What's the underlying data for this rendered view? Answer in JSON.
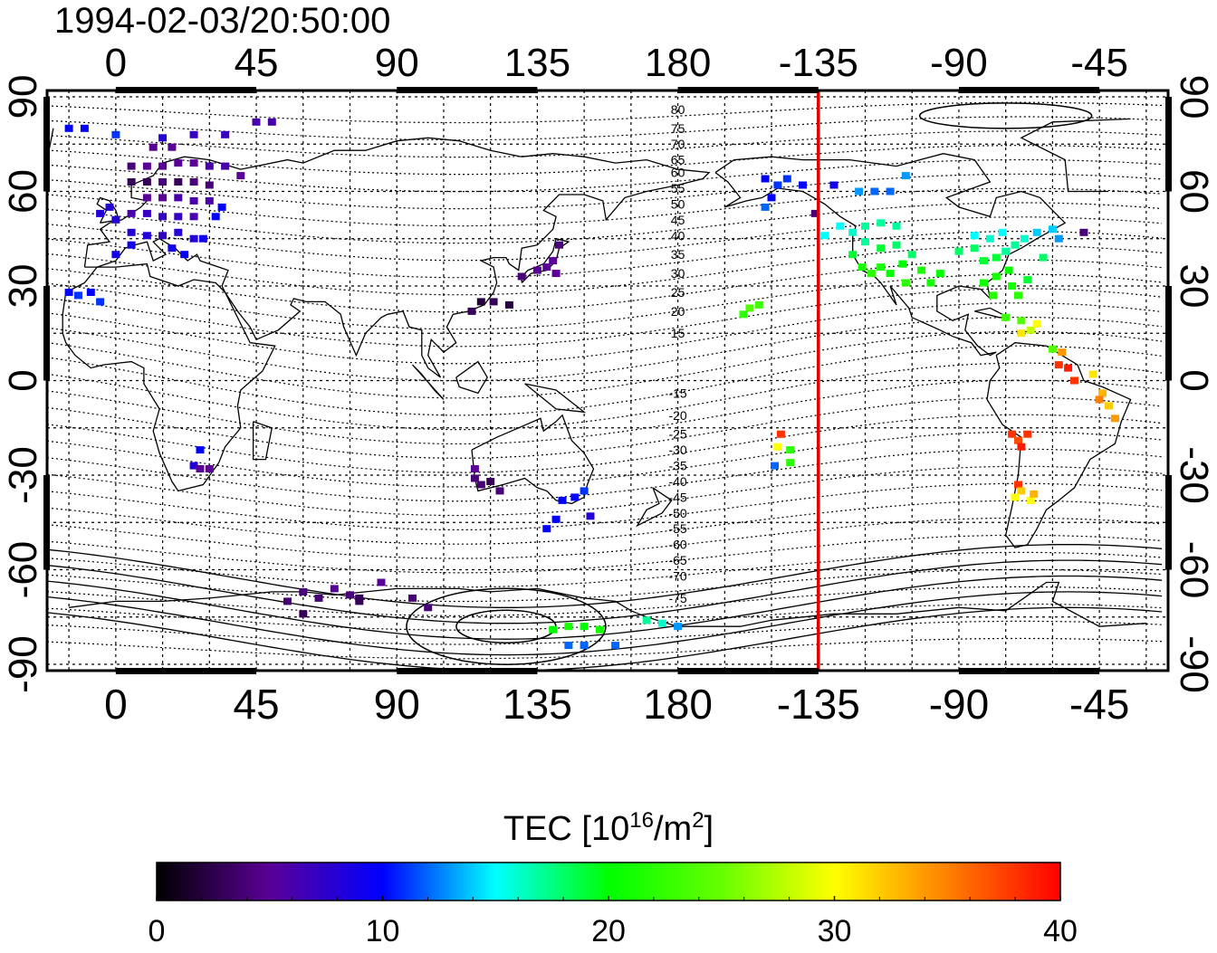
{
  "title": "1994-02-03/20:50:00",
  "map": {
    "projection": "equirectangular",
    "center_longitude": 180,
    "lon_range": [
      -22,
      337
    ],
    "lat_range": [
      -92,
      92
    ],
    "grid_on": true,
    "grid_step_deg": 15,
    "coastlines": true,
    "red_meridian_longitude": -135
  },
  "axes": {
    "top_ticks": [
      "0",
      "45",
      "90",
      "135",
      "180",
      "-135",
      "-90",
      "-45"
    ],
    "bottom_ticks": [
      "0",
      "45",
      "90",
      "135",
      "180",
      "-135",
      "-90",
      "-45"
    ],
    "tick_longitudes": [
      0,
      45,
      90,
      135,
      180,
      225,
      270,
      315
    ],
    "left_ticks": [
      "90",
      "60",
      "30",
      "0",
      "-30",
      "-60",
      "-90"
    ],
    "right_ticks": [
      "90",
      "60",
      "30",
      "0",
      "-30",
      "-60",
      "-90"
    ],
    "tick_latitudes": [
      90,
      60,
      30,
      0,
      -30,
      -60,
      -90
    ]
  },
  "contours": {
    "description_labels_north": [
      "80",
      "75",
      "70",
      "65",
      "60",
      "55",
      "50",
      "45",
      "40",
      "35",
      "30",
      "25",
      "20",
      "15"
    ],
    "north_label_latitudes": [
      86,
      80,
      75,
      70,
      66,
      61,
      56,
      51,
      46,
      40,
      34,
      28,
      22,
      15
    ],
    "description_labels_south": [
      "-15",
      "-20",
      "-25",
      "-30",
      "-35",
      "-40",
      "-45",
      "-50",
      "-55",
      "-60",
      "-65",
      "-70",
      "-75"
    ],
    "south_label_latitudes": [
      -4,
      -11,
      -17,
      -22,
      -27,
      -32,
      -37,
      -42,
      -47,
      -52,
      -57,
      -62,
      -69
    ],
    "label_longitude": 180
  },
  "colorbar": {
    "title_main": "TEC  [10",
    "title_exp": "16",
    "title_unit": "/m",
    "title_exp2": "2",
    "title_close": "]",
    "min": 0,
    "max": 40,
    "tick_values": [
      "0",
      "10",
      "20",
      "30",
      "40"
    ],
    "stops": [
      {
        "v": 0,
        "c": "#000000"
      },
      {
        "v": 5,
        "c": "#5a0096"
      },
      {
        "v": 10,
        "c": "#0000ff"
      },
      {
        "v": 15,
        "c": "#00ffff"
      },
      {
        "v": 20,
        "c": "#00ff00"
      },
      {
        "v": 25,
        "c": "#66ff00"
      },
      {
        "v": 30,
        "c": "#ffff00"
      },
      {
        "v": 35,
        "c": "#ff8000"
      },
      {
        "v": 40,
        "c": "#ff0000"
      }
    ]
  },
  "chart_data": {
    "type": "scatter",
    "value_name": "TEC",
    "points": [
      {
        "lon": 5,
        "lat": 63,
        "tec": 3
      },
      {
        "lon": 10,
        "lat": 63,
        "tec": 3
      },
      {
        "lon": 15,
        "lat": 63,
        "tec": 4
      },
      {
        "lon": 20,
        "lat": 63,
        "tec": 3
      },
      {
        "lon": 25,
        "lat": 63,
        "tec": 4
      },
      {
        "lon": 30,
        "lat": 62,
        "tec": 4
      },
      {
        "lon": 5,
        "lat": 68,
        "tec": 4
      },
      {
        "lon": 10,
        "lat": 68,
        "tec": 5
      },
      {
        "lon": 15,
        "lat": 68,
        "tec": 5
      },
      {
        "lon": 20,
        "lat": 69,
        "tec": 5
      },
      {
        "lon": 25,
        "lat": 69,
        "tec": 5
      },
      {
        "lon": 12,
        "lat": 74,
        "tec": 5
      },
      {
        "lon": 18,
        "lat": 74,
        "tec": 5
      },
      {
        "lon": 10,
        "lat": 58,
        "tec": 5
      },
      {
        "lon": 15,
        "lat": 58,
        "tec": 5
      },
      {
        "lon": 20,
        "lat": 58,
        "tec": 6
      },
      {
        "lon": 25,
        "lat": 57,
        "tec": 6
      },
      {
        "lon": 30,
        "lat": 57,
        "tec": 6
      },
      {
        "lon": 5,
        "lat": 53,
        "tec": 6
      },
      {
        "lon": 10,
        "lat": 53,
        "tec": 7
      },
      {
        "lon": 15,
        "lat": 52,
        "tec": 7
      },
      {
        "lon": 20,
        "lat": 52,
        "tec": 7
      },
      {
        "lon": 25,
        "lat": 52,
        "tec": 6
      },
      {
        "lon": 0,
        "lat": 51,
        "tec": 8
      },
      {
        "lon": -2,
        "lat": 55,
        "tec": 8
      },
      {
        "lon": -5,
        "lat": 53,
        "tec": 8
      },
      {
        "lon": 5,
        "lat": 47,
        "tec": 8
      },
      {
        "lon": 10,
        "lat": 46,
        "tec": 8
      },
      {
        "lon": 15,
        "lat": 46,
        "tec": 7
      },
      {
        "lon": 20,
        "lat": 47,
        "tec": 8
      },
      {
        "lon": 25,
        "lat": 45,
        "tec": 8
      },
      {
        "lon": 18,
        "lat": 42,
        "tec": 9
      },
      {
        "lon": 22,
        "lat": 40,
        "tec": 10
      },
      {
        "lon": 28,
        "lat": 45,
        "tec": 9
      },
      {
        "lon": 34,
        "lat": 55,
        "tec": 10
      },
      {
        "lon": 32,
        "lat": 52,
        "tec": 10
      },
      {
        "lon": 30,
        "lat": 68,
        "tec": 6
      },
      {
        "lon": 35,
        "lat": 68,
        "tec": 6
      },
      {
        "lon": 40,
        "lat": 65,
        "tec": 5
      },
      {
        "lon": 0,
        "lat": 40,
        "tec": 9
      },
      {
        "lon": 5,
        "lat": 43,
        "tec": 9
      },
      {
        "lon": -15,
        "lat": 28,
        "tec": 10
      },
      {
        "lon": -12,
        "lat": 27,
        "tec": 11
      },
      {
        "lon": -8,
        "lat": 28,
        "tec": 10
      },
      {
        "lon": -5,
        "lat": 25,
        "tec": 11
      },
      {
        "lon": -15,
        "lat": 80,
        "tec": 10
      },
      {
        "lon": -10,
        "lat": 80,
        "tec": 10
      },
      {
        "lon": 0,
        "lat": 78,
        "tec": 11
      },
      {
        "lon": 15,
        "lat": 77,
        "tec": 8
      },
      {
        "lon": 25,
        "lat": 78,
        "tec": 7
      },
      {
        "lon": 35,
        "lat": 78,
        "tec": 7
      },
      {
        "lon": 45,
        "lat": 82,
        "tec": 6
      },
      {
        "lon": 50,
        "lat": 82,
        "tec": 6
      },
      {
        "lon": 25,
        "lat": -27,
        "tec": 8
      },
      {
        "lon": 27,
        "lat": -28,
        "tec": 5
      },
      {
        "lon": 30,
        "lat": -28,
        "tec": 5
      },
      {
        "lon": 27,
        "lat": -22,
        "tec": 10
      },
      {
        "lon": 115,
        "lat": -31,
        "tec": 4
      },
      {
        "lon": 117,
        "lat": -33,
        "tec": 4
      },
      {
        "lon": 120,
        "lat": -32,
        "tec": 3
      },
      {
        "lon": 115,
        "lat": -28,
        "tec": 5
      },
      {
        "lon": 123,
        "lat": -35,
        "tec": 4
      },
      {
        "lon": 143,
        "lat": -38,
        "tec": 10
      },
      {
        "lon": 147,
        "lat": -37,
        "tec": 10
      },
      {
        "lon": 150,
        "lat": -35,
        "tec": 11
      },
      {
        "lon": 152,
        "lat": -43,
        "tec": 8
      },
      {
        "lon": 141,
        "lat": -44,
        "tec": 10
      },
      {
        "lon": 138,
        "lat": -47,
        "tec": 10
      },
      {
        "lon": 138,
        "lat": 36,
        "tec": 5
      },
      {
        "lon": 140,
        "lat": 38,
        "tec": 5
      },
      {
        "lon": 135,
        "lat": 35,
        "tec": 5
      },
      {
        "lon": 142,
        "lat": 43,
        "tec": 4
      },
      {
        "lon": 130,
        "lat": 33,
        "tec": 4
      },
      {
        "lon": 141,
        "lat": 34,
        "tec": 5
      },
      {
        "lon": 117,
        "lat": 25,
        "tec": 2
      },
      {
        "lon": 121,
        "lat": 25,
        "tec": 3
      },
      {
        "lon": 114,
        "lat": 22,
        "tec": 3
      },
      {
        "lon": 126,
        "lat": 24,
        "tec": 2
      },
      {
        "lon": 60,
        "lat": -67,
        "tec": 4
      },
      {
        "lon": 65,
        "lat": -69,
        "tec": 4
      },
      {
        "lon": 70,
        "lat": -66,
        "tec": 5
      },
      {
        "lon": 75,
        "lat": -68,
        "tec": 4
      },
      {
        "lon": 78,
        "lat": -69,
        "tec": 3
      },
      {
        "lon": 85,
        "lat": -64,
        "tec": 5
      },
      {
        "lon": 95,
        "lat": -69,
        "tec": 4
      },
      {
        "lon": 100,
        "lat": -72,
        "tec": 4
      },
      {
        "lon": 55,
        "lat": -70,
        "tec": 4
      },
      {
        "lon": 60,
        "lat": -74,
        "tec": 3
      },
      {
        "lon": 78,
        "lat": -70,
        "tec": 3
      },
      {
        "lon": 140,
        "lat": -79,
        "tec": 20
      },
      {
        "lon": 145,
        "lat": -78,
        "tec": 21
      },
      {
        "lon": 150,
        "lat": -78,
        "tec": 20
      },
      {
        "lon": 155,
        "lat": -79,
        "tec": 21
      },
      {
        "lon": 145,
        "lat": -84,
        "tec": 12
      },
      {
        "lon": 150,
        "lat": -84,
        "tec": 12
      },
      {
        "lon": 160,
        "lat": -84,
        "tec": 12
      },
      {
        "lon": 170,
        "lat": -76,
        "tec": 17
      },
      {
        "lon": 175,
        "lat": -77,
        "tec": 16
      },
      {
        "lon": 180,
        "lat": -78,
        "tec": 13
      },
      {
        "lon": 201,
        "lat": 21,
        "tec": 22
      },
      {
        "lon": 203,
        "lat": 23,
        "tec": 24
      },
      {
        "lon": 206,
        "lat": 24,
        "tec": 23
      },
      {
        "lon": 213,
        "lat": -17,
        "tec": 38
      },
      {
        "lon": 212,
        "lat": -21,
        "tec": 30
      },
      {
        "lon": 216,
        "lat": -22,
        "tec": 22
      },
      {
        "lon": 211,
        "lat": -27,
        "tec": 12
      },
      {
        "lon": 216,
        "lat": -26,
        "tec": 22
      },
      {
        "lon": 208,
        "lat": 64,
        "tec": 10
      },
      {
        "lon": 212,
        "lat": 62,
        "tec": 11
      },
      {
        "lon": 215,
        "lat": 64,
        "tec": 11
      },
      {
        "lon": 220,
        "lat": 62,
        "tec": 10
      },
      {
        "lon": 210,
        "lat": 58,
        "tec": 10
      },
      {
        "lon": 208,
        "lat": 55,
        "tec": 12
      },
      {
        "lon": 224,
        "lat": 53,
        "tec": 4
      },
      {
        "lon": 227,
        "lat": 46,
        "tec": 15
      },
      {
        "lon": 230,
        "lat": 62,
        "tec": 9
      },
      {
        "lon": 238,
        "lat": 60,
        "tec": 13
      },
      {
        "lon": 243,
        "lat": 60,
        "tec": 12
      },
      {
        "lon": 248,
        "lat": 60,
        "tec": 12
      },
      {
        "lon": 253,
        "lat": 65,
        "tec": 13
      },
      {
        "lon": 232,
        "lat": 49,
        "tec": 15
      },
      {
        "lon": 236,
        "lat": 47,
        "tec": 16
      },
      {
        "lon": 240,
        "lat": 49,
        "tec": 17
      },
      {
        "lon": 245,
        "lat": 50,
        "tec": 17
      },
      {
        "lon": 250,
        "lat": 49,
        "tec": 17
      },
      {
        "lon": 236,
        "lat": 40,
        "tec": 19
      },
      {
        "lon": 239,
        "lat": 36,
        "tec": 21
      },
      {
        "lon": 242,
        "lat": 34,
        "tec": 22
      },
      {
        "lon": 245,
        "lat": 36,
        "tec": 21
      },
      {
        "lon": 248,
        "lat": 34,
        "tec": 20
      },
      {
        "lon": 252,
        "lat": 37,
        "tec": 20
      },
      {
        "lon": 255,
        "lat": 40,
        "tec": 18
      },
      {
        "lon": 258,
        "lat": 35,
        "tec": 21
      },
      {
        "lon": 261,
        "lat": 31,
        "tec": 21
      },
      {
        "lon": 264,
        "lat": 34,
        "tec": 20
      },
      {
        "lon": 250,
        "lat": 43,
        "tec": 18
      },
      {
        "lon": 245,
        "lat": 42,
        "tec": 19
      },
      {
        "lon": 240,
        "lat": 44,
        "tec": 17
      },
      {
        "lon": 253,
        "lat": 31,
        "tec": 22
      },
      {
        "lon": 270,
        "lat": 41,
        "tec": 18
      },
      {
        "lon": 275,
        "lat": 42,
        "tec": 18
      },
      {
        "lon": 278,
        "lat": 38,
        "tec": 19
      },
      {
        "lon": 282,
        "lat": 39,
        "tec": 19
      },
      {
        "lon": 285,
        "lat": 41,
        "tec": 17
      },
      {
        "lon": 288,
        "lat": 43,
        "tec": 17
      },
      {
        "lon": 291,
        "lat": 45,
        "tec": 16
      },
      {
        "lon": 295,
        "lat": 47,
        "tec": 14
      },
      {
        "lon": 280,
        "lat": 45,
        "tec": 16
      },
      {
        "lon": 275,
        "lat": 46,
        "tec": 15
      },
      {
        "lon": 284,
        "lat": 47,
        "tec": 15
      },
      {
        "lon": 286,
        "lat": 35,
        "tec": 20
      },
      {
        "lon": 282,
        "lat": 33,
        "tec": 21
      },
      {
        "lon": 278,
        "lat": 31,
        "tec": 21
      },
      {
        "lon": 281,
        "lat": 27,
        "tec": 22
      },
      {
        "lon": 287,
        "lat": 30,
        "tec": 21
      },
      {
        "lon": 289,
        "lat": 27,
        "tec": 22
      },
      {
        "lon": 292,
        "lat": 32,
        "tec": 19
      },
      {
        "lon": 300,
        "lat": 48,
        "tec": 14
      },
      {
        "lon": 302,
        "lat": 45,
        "tec": 13
      },
      {
        "lon": 310,
        "lat": 47,
        "tec": 4
      },
      {
        "lon": 297,
        "lat": 39,
        "tec": 18
      },
      {
        "lon": 285,
        "lat": 20,
        "tec": 23
      },
      {
        "lon": 290,
        "lat": 19,
        "tec": 24
      },
      {
        "lon": 293,
        "lat": 16,
        "tec": 28
      },
      {
        "lon": 295,
        "lat": 18,
        "tec": 30
      },
      {
        "lon": 290,
        "lat": 15,
        "tec": 31
      },
      {
        "lon": 300,
        "lat": 10,
        "tec": 24
      },
      {
        "lon": 303,
        "lat": 9,
        "tec": 34
      },
      {
        "lon": 302,
        "lat": 5,
        "tec": 38
      },
      {
        "lon": 305,
        "lat": 4,
        "tec": 39
      },
      {
        "lon": 307,
        "lat": 0,
        "tec": 38
      },
      {
        "lon": 313,
        "lat": 2,
        "tec": 31
      },
      {
        "lon": 316,
        "lat": -4,
        "tec": 33
      },
      {
        "lon": 315,
        "lat": -6,
        "tec": 35
      },
      {
        "lon": 318,
        "lat": -8,
        "tec": 32
      },
      {
        "lon": 320,
        "lat": -12,
        "tec": 34
      },
      {
        "lon": 287,
        "lat": -17,
        "tec": 38
      },
      {
        "lon": 289,
        "lat": -19,
        "tec": 37
      },
      {
        "lon": 292,
        "lat": -17,
        "tec": 38
      },
      {
        "lon": 290,
        "lat": -21,
        "tec": 39
      },
      {
        "lon": 289,
        "lat": -33,
        "tec": 38
      },
      {
        "lon": 290,
        "lat": -35,
        "tec": 32
      },
      {
        "lon": 288,
        "lat": -37,
        "tec": 30
      },
      {
        "lon": 293,
        "lat": -38,
        "tec": 30
      },
      {
        "lon": 294,
        "lat": -36,
        "tec": 33
      }
    ]
  }
}
